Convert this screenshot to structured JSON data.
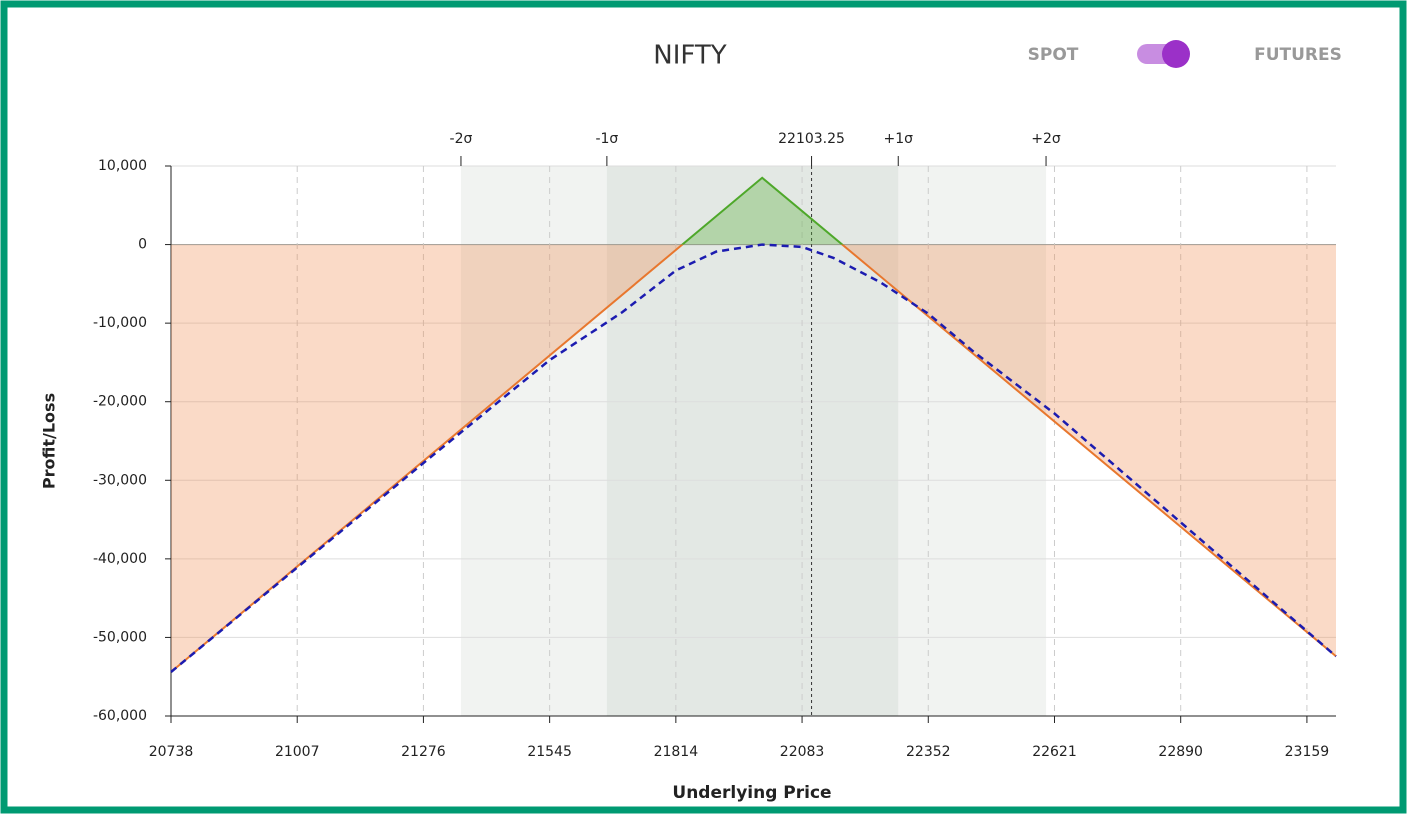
{
  "chart_data": {
    "type": "line",
    "title": "NIFTY",
    "toggle": {
      "left": "SPOT",
      "right": "FUTURES",
      "on": "right",
      "color": "#9b30c8"
    },
    "xlabel": "Underlying Price",
    "ylabel": "Profit/Loss",
    "xlim": [
      20738,
      23221
    ],
    "ylim": [
      -60000,
      10000
    ],
    "xticks": [
      20738,
      21007,
      21276,
      21545,
      21814,
      22083,
      22352,
      22621,
      22890,
      23159
    ],
    "yticks": [
      {
        "value": 10000,
        "label": "10,000"
      },
      0,
      {
        "value": -10000,
        "label": "-10,000"
      },
      {
        "value": -20000,
        "label": "-20,000"
      },
      {
        "value": -30000,
        "label": "-30,000"
      },
      {
        "value": -40000,
        "label": "-40,000"
      },
      {
        "value": -50000,
        "label": "-50,000"
      },
      {
        "value": -60000,
        "label": "-60,000"
      }
    ],
    "grid": true,
    "spot": 22103.25,
    "sigma_markers": [
      {
        "label": "-2σ",
        "x": 21356
      },
      {
        "label": "-1σ",
        "x": 21667
      },
      {
        "label": "+1σ",
        "x": 22288
      },
      {
        "label": "+2σ",
        "x": 22603
      }
    ],
    "series": [
      {
        "color": "#e8772e",
        "style": "solid",
        "fill": true,
        "x": [
          20738,
          21998,
          23221
        ],
        "values": [
          -54400,
          8500,
          -52400
        ]
      },
      {
        "color": "#1c1cb0",
        "style": "dashed",
        "fill": false,
        "x": [
          20738,
          21276,
          21545,
          21700,
          21814,
          21900,
          21998,
          22083,
          22150,
          22250,
          22352,
          22450,
          22621,
          23221
        ],
        "values": [
          -54400,
          -27800,
          -14700,
          -8600,
          -3300,
          -900,
          0,
          -300,
          -1700,
          -4800,
          -8800,
          -13700,
          -21500,
          -52400
        ]
      }
    ]
  }
}
